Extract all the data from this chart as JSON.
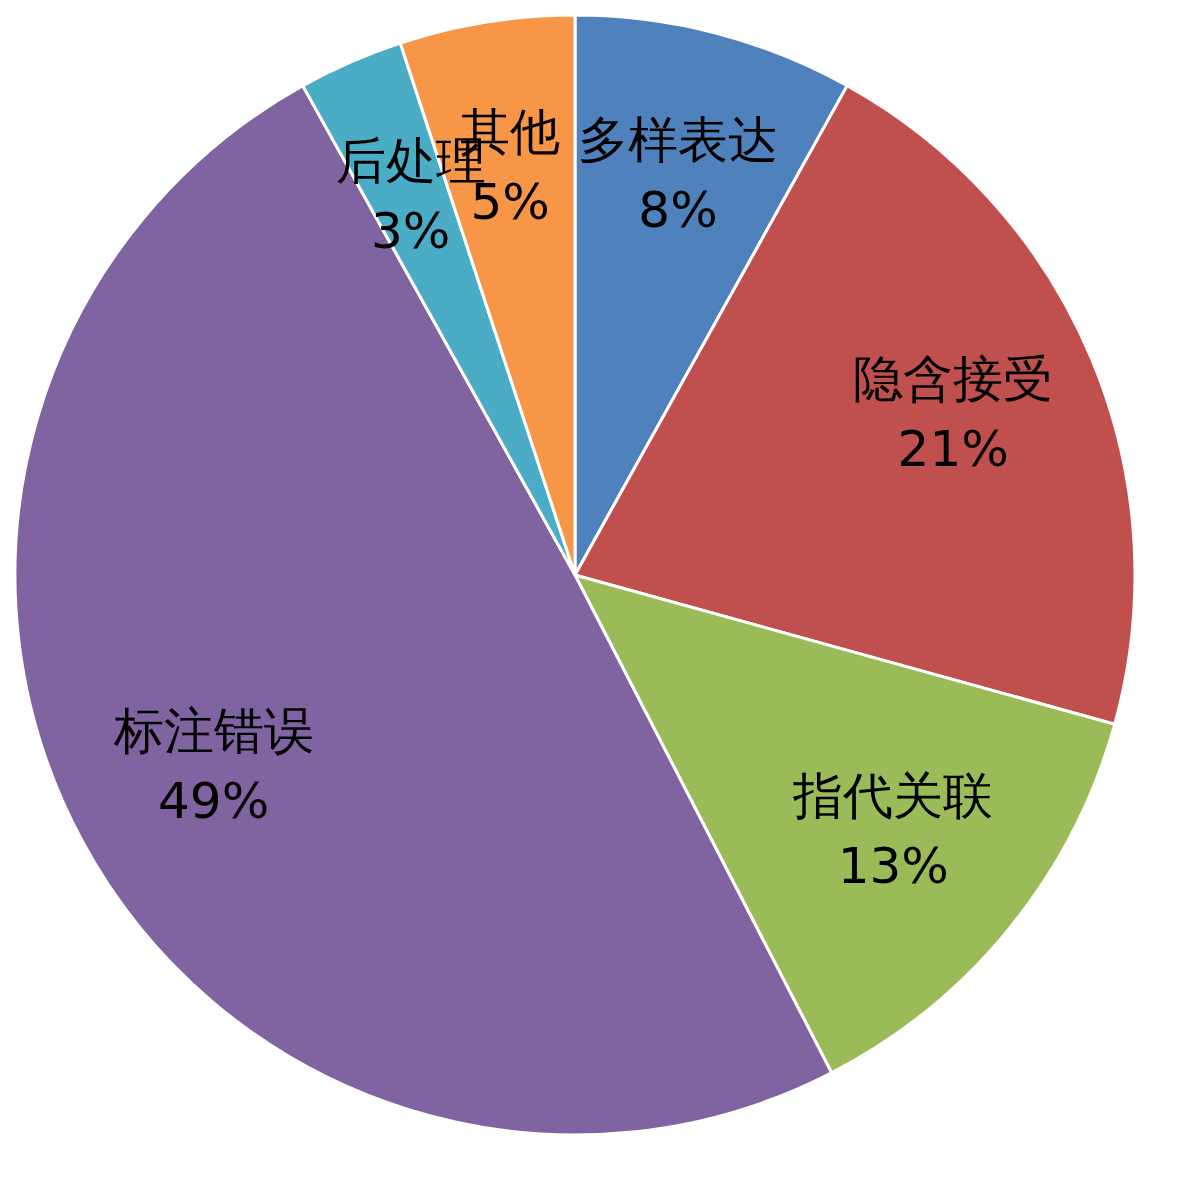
{
  "chart_data": {
    "type": "pie",
    "categories": [
      "多样表达",
      "隐含接受",
      "指代关联",
      "标注错误",
      "后处理",
      "其他"
    ],
    "values": [
      8,
      21,
      13,
      49,
      3,
      5
    ],
    "colors": [
      "#4f81bd",
      "#c0504d",
      "#9bbb59",
      "#8064a2",
      "#4bacc6",
      "#f79646"
    ],
    "value_labels": [
      "8%",
      "21%",
      "13%",
      "49%",
      "3%",
      "5%"
    ],
    "legend": false
  }
}
